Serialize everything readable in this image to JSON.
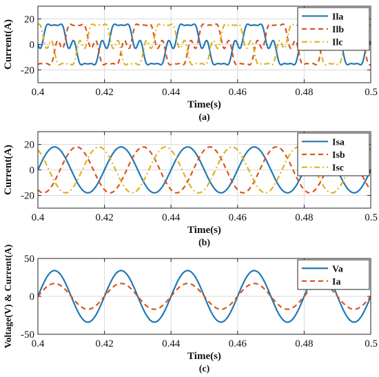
{
  "colors": {
    "blue": "#1f77b4",
    "orange": "#d95319",
    "yellow": "#e0b21f",
    "grid": "#d9d9d9"
  },
  "chart_data": [
    {
      "type": "line",
      "caption": "(a)",
      "xlabel": "Time(s)",
      "ylabel": "Current(A)",
      "xlim": [
        0.4,
        0.5
      ],
      "ylim": [
        -30,
        30
      ],
      "xticks": [
        0.4,
        0.42,
        0.44,
        0.46,
        0.48,
        0.5
      ],
      "xtick_labels": [
        "0.4",
        "0.42",
        "0.44",
        "0.46",
        "0.48",
        "0.5"
      ],
      "yticks": [
        -20,
        0,
        20
      ],
      "ytick_labels": [
        "-20",
        "0",
        "20"
      ],
      "grid": true,
      "legend": "top-right",
      "series": [
        {
          "name": "Ila",
          "color": "#1f77b4",
          "dash": "solid",
          "frequency_hz": 50,
          "peak": 18,
          "phase_deg": 0,
          "waveform": "distorted-sine"
        },
        {
          "name": "Ilb",
          "color": "#d95319",
          "dash": "dashed",
          "frequency_hz": 50,
          "peak": 18,
          "phase_deg": -120,
          "waveform": "distorted-sine"
        },
        {
          "name": "Ilc",
          "color": "#e0b21f",
          "dash": "dashdot",
          "frequency_hz": 50,
          "peak": 18,
          "phase_deg": 120,
          "waveform": "distorted-sine"
        }
      ]
    },
    {
      "type": "line",
      "caption": "(b)",
      "xlabel": "Time(s)",
      "ylabel": "Current(A)",
      "xlim": [
        0.4,
        0.5
      ],
      "ylim": [
        -30,
        30
      ],
      "xticks": [
        0.4,
        0.42,
        0.44,
        0.46,
        0.48,
        0.5
      ],
      "xtick_labels": [
        "0.4",
        "0.42",
        "0.44",
        "0.46",
        "0.48",
        "0.5"
      ],
      "yticks": [
        -20,
        0,
        20
      ],
      "ytick_labels": [
        "-20",
        "0",
        "20"
      ],
      "grid": true,
      "legend": "top-right",
      "series": [
        {
          "name": "Isa",
          "color": "#1f77b4",
          "dash": "solid",
          "frequency_hz": 50,
          "peak": 18,
          "phase_deg": 0,
          "waveform": "sine"
        },
        {
          "name": "Isb",
          "color": "#d95319",
          "dash": "dashed",
          "frequency_hz": 50,
          "peak": 18,
          "phase_deg": -120,
          "waveform": "sine"
        },
        {
          "name": "Isc",
          "color": "#e0b21f",
          "dash": "dashdot",
          "frequency_hz": 50,
          "peak": 18,
          "phase_deg": 120,
          "waveform": "sine"
        }
      ]
    },
    {
      "type": "line",
      "caption": "(c)",
      "xlabel": "Time(s)",
      "ylabel": "Voltage(V) & Current(A)",
      "xlim": [
        0.4,
        0.5
      ],
      "ylim": [
        -50,
        50
      ],
      "xticks": [
        0.4,
        0.42,
        0.44,
        0.46,
        0.48,
        0.5
      ],
      "xtick_labels": [
        "0.4",
        "0.42",
        "0.44",
        "0.46",
        "0.48",
        "0.5"
      ],
      "yticks": [
        -50,
        0,
        50
      ],
      "ytick_labels": [
        "-50",
        "0",
        "50"
      ],
      "grid": true,
      "legend": "top-right",
      "series": [
        {
          "name": "Va",
          "color": "#1f77b4",
          "dash": "solid",
          "frequency_hz": 50,
          "peak": 34,
          "phase_deg": 0,
          "waveform": "sine"
        },
        {
          "name": "Ia",
          "color": "#d95319",
          "dash": "dashed",
          "frequency_hz": 50,
          "peak": 17,
          "phase_deg": 0,
          "waveform": "sine"
        }
      ]
    }
  ]
}
